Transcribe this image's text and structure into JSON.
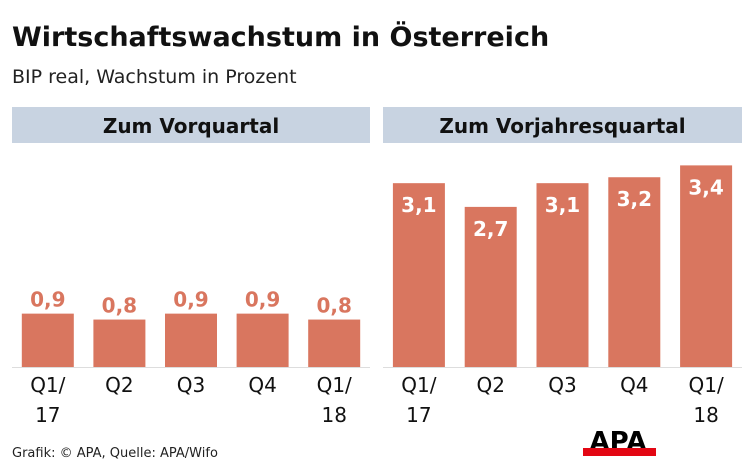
{
  "title": "Wirtschaftswachstum in Österreich",
  "subtitle": "BIP real, Wachstum in Prozent",
  "source": "Grafik: © APA, Quelle: APA/Wifo",
  "logo": "APA",
  "colors": {
    "bar": "#d9765f",
    "label_outside": "#d9765f",
    "label_inside": "#ffffff",
    "panel_header": "#c8d3e1",
    "logo_red": "#e30613"
  },
  "chart_data": [
    {
      "type": "bar",
      "title": "Zum Vorquartal",
      "categories": [
        "Q1/\n17",
        "Q2",
        "Q3",
        "Q4",
        "Q1/\n18"
      ],
      "values": [
        0.9,
        0.8,
        0.9,
        0.9,
        0.8
      ],
      "value_labels": [
        "0,9",
        "0,8",
        "0,9",
        "0,9",
        "0,8"
      ],
      "label_position": "above",
      "ylim": [
        0,
        3.4
      ]
    },
    {
      "type": "bar",
      "title": "Zum Vorjahresquartal",
      "categories": [
        "Q1/\n17",
        "Q2",
        "Q3",
        "Q4",
        "Q1/\n18"
      ],
      "values": [
        3.1,
        2.7,
        3.1,
        3.2,
        3.4
      ],
      "value_labels": [
        "3,1",
        "2,7",
        "3,1",
        "3,2",
        "3,4"
      ],
      "label_position": "inside",
      "ylim": [
        0,
        3.4
      ]
    }
  ]
}
